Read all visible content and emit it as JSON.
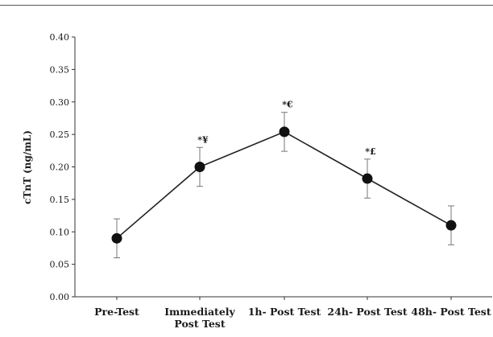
{
  "chart_data": {
    "type": "line",
    "title": "",
    "xlabel": "",
    "ylabel": "cTnT (ng/mL)",
    "ylim": [
      0,
      0.4
    ],
    "yticks": [
      "0.00",
      "0.05",
      "0.10",
      "0.15",
      "0.20",
      "0.25",
      "0.30",
      "0.35",
      "0.40"
    ],
    "categories": [
      [
        "Pre-Test"
      ],
      [
        "Immediately",
        "Post Test"
      ],
      [
        "1h- Post Test"
      ],
      [
        "24h- Post Test"
      ],
      [
        "48h- Post Test"
      ]
    ],
    "series": [
      {
        "values": [
          0.09,
          0.2,
          0.254,
          0.182,
          0.11
        ],
        "error": [
          0.03,
          0.03,
          0.03,
          0.03,
          0.03
        ]
      }
    ],
    "annotations": [
      "",
      "*¥",
      "*€",
      "*£",
      ""
    ],
    "grid": false,
    "legend": "none",
    "colors": {
      "line": "#222222",
      "marker": "#111111",
      "axis": "#333333",
      "text": "#1a1a1a"
    }
  }
}
